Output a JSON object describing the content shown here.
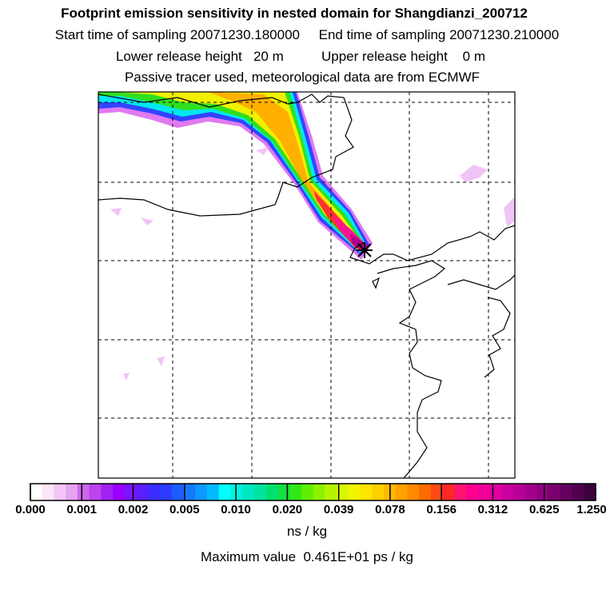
{
  "header": {
    "title": "Footprint emission sensitivity in nested domain for Shangdianzi_200712",
    "sampling_line": "Start time of sampling 20071230.180000     End time of sampling 20071230.210000",
    "release_line": "Lower release height   20 m          Upper release height    0 m",
    "tracer_line": "Passive tracer used, meteorological data are from ECMWF"
  },
  "colorbar": {
    "tick_labels": [
      "0.000",
      "0.001",
      "0.002",
      "0.005",
      "0.010",
      "0.020",
      "0.039",
      "0.078",
      "0.156",
      "0.312",
      "0.625",
      "1.250"
    ],
    "colors": [
      "#ffffff",
      "#fbe6fb",
      "#f2c6f5",
      "#e5a4ef",
      "#cc66ee",
      "#bb44ee",
      "#a41ff2",
      "#9900ff",
      "#7a14ff",
      "#5b1fff",
      "#3c2cff",
      "#2b3cff",
      "#1d5cff",
      "#1479ff",
      "#0d99ff",
      "#00bbff",
      "#00ffff",
      "#00f2e0",
      "#00e8c0",
      "#00e4a0",
      "#00e070",
      "#10e040",
      "#30e818",
      "#60ef00",
      "#8cf200",
      "#b4f400",
      "#d8f600",
      "#f2f400",
      "#ffe500",
      "#ffd000",
      "#ffba00",
      "#ffa200",
      "#ff8a00",
      "#ff6a00",
      "#ff4a14",
      "#ff2828",
      "#ff1470",
      "#ff0090",
      "#f00098",
      "#e000a0",
      "#cc00a0",
      "#b80098",
      "#a4008c",
      "#900080",
      "#7a0070",
      "#640060",
      "#500050",
      "#3c003c"
    ],
    "units": "ns / kg",
    "maximum_label": "Maximum value  0.461E+01 ps / kg"
  },
  "map": {
    "receptor_marker": "receptor-star-icon"
  }
}
